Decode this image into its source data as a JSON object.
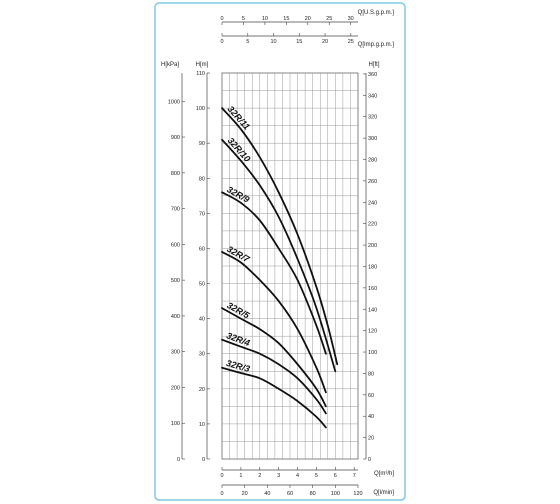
{
  "chart_data": {
    "type": "line",
    "title": "",
    "colors": {
      "frame": "#7ec8e3",
      "grid": "#9a9a9a",
      "curve": "#111111"
    },
    "left_axes": [
      {
        "label": "H[kPa]",
        "ticks": [
          0,
          100,
          200,
          300,
          400,
          500,
          600,
          700,
          800,
          900,
          1000
        ]
      },
      {
        "label": "H[m]",
        "ticks": [
          0,
          10,
          20,
          30,
          40,
          50,
          60,
          70,
          80,
          90,
          100,
          110
        ]
      }
    ],
    "right_axis": {
      "label": "H[ft]",
      "ticks": [
        0,
        20,
        40,
        60,
        80,
        100,
        120,
        140,
        160,
        180,
        200,
        220,
        240,
        260,
        280,
        300,
        320,
        340,
        360
      ]
    },
    "top_axes": [
      {
        "label": "Q[U.S.g.p.m.]",
        "ticks": [
          0,
          5,
          10,
          15,
          20,
          25,
          30
        ]
      },
      {
        "label": "Q[Imp.g.p.m.]",
        "ticks": [
          0,
          5,
          10,
          15,
          20,
          25
        ]
      }
    ],
    "bottom_axes": [
      {
        "label": "Q[m³/h]",
        "ticks": [
          0,
          1,
          2,
          3,
          4,
          5,
          6,
          7
        ]
      },
      {
        "label": "Q[l/min]",
        "ticks": [
          0,
          20,
          40,
          60,
          80,
          100,
          120
        ]
      }
    ],
    "xlim": [
      0,
      7.2
    ],
    "ylim": [
      0,
      110
    ],
    "series": [
      {
        "name": "32R/11",
        "x": [
          0,
          1,
          2,
          3,
          4,
          5,
          5.6,
          6.1
        ],
        "y": [
          100,
          94,
          86,
          76,
          64,
          49,
          38,
          27
        ]
      },
      {
        "name": "32R/10",
        "x": [
          0,
          1,
          2,
          3,
          4,
          5,
          6.0
        ],
        "y": [
          91,
          85,
          78,
          69,
          57,
          43,
          25
        ]
      },
      {
        "name": "32R/9",
        "x": [
          0,
          1,
          2,
          3,
          4,
          5,
          5.5
        ],
        "y": [
          76,
          73,
          68,
          60,
          51,
          38,
          30
        ]
      },
      {
        "name": "32R/7",
        "x": [
          0,
          1,
          2,
          3,
          4,
          5,
          5.5
        ],
        "y": [
          59,
          56,
          51,
          45,
          37,
          26,
          19
        ]
      },
      {
        "name": "32R/5",
        "x": [
          0,
          1,
          2,
          3,
          4,
          5,
          5.5
        ],
        "y": [
          43,
          40,
          37,
          33,
          27,
          20,
          15
        ]
      },
      {
        "name": "32R/4",
        "x": [
          0,
          1,
          2,
          3,
          4,
          5,
          5.5
        ],
        "y": [
          34,
          32,
          30,
          27,
          23,
          17,
          13
        ]
      },
      {
        "name": "32R/3",
        "x": [
          0,
          1,
          2,
          3,
          4,
          5,
          5.5
        ],
        "y": [
          26,
          24.5,
          23,
          20,
          16.5,
          12,
          9
        ]
      }
    ]
  }
}
